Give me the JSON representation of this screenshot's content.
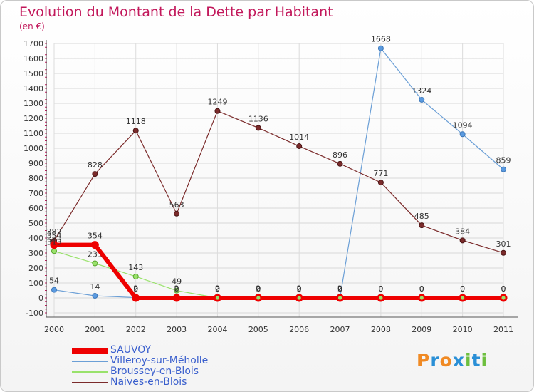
{
  "title": "Evolution du Montant de la Dette par Habitant",
  "unit": "(en €)",
  "logo": {
    "text": "Proxiti",
    "letters": [
      {
        "ch": "P",
        "color": "#f08a24"
      },
      {
        "ch": "r",
        "color": "#2a8fd6"
      },
      {
        "ch": "o",
        "color": "#f08a24"
      },
      {
        "ch": "x",
        "color": "#2a8fd6"
      },
      {
        "ch": "i",
        "color": "#6dbf3e"
      },
      {
        "ch": "t",
        "color": "#2a8fd6"
      },
      {
        "ch": "i",
        "color": "#6dbf3e"
      }
    ]
  },
  "chart_data": {
    "type": "line",
    "title": "Evolution du Montant de la Dette par Habitant",
    "ylabel": "(en €)",
    "x": [
      "2000",
      "2001",
      "2002",
      "2003",
      "2004",
      "2005",
      "2006",
      "2007",
      "2008",
      "2009",
      "2010",
      "2011"
    ],
    "ylim": [
      -100,
      1700
    ],
    "yticks": [
      -100,
      0,
      100,
      200,
      300,
      400,
      500,
      600,
      700,
      800,
      900,
      1000,
      1100,
      1200,
      1300,
      1400,
      1500,
      1600,
      1700
    ],
    "grid": true,
    "legend_position": "bottom-left",
    "series": [
      {
        "name": "SAUVOY",
        "color": "#ee0000",
        "values": [
          354,
          354,
          0,
          0,
          0,
          0,
          0,
          0,
          0,
          0,
          0,
          0
        ],
        "labels": [
          "354",
          "354",
          "0",
          "0",
          "0",
          "0",
          "0",
          "0",
          "0",
          "0",
          "0",
          "0"
        ]
      },
      {
        "name": "Villeroy-sur-Méholle",
        "color": "#6b9fd6",
        "values": [
          54,
          14,
          2,
          2,
          2,
          2,
          2,
          2,
          1668,
          1324,
          1094,
          859
        ],
        "labels": [
          "54",
          "14",
          "2",
          "2",
          "2",
          "2",
          "2",
          "2",
          "1668",
          "1324",
          "1094",
          "859"
        ]
      },
      {
        "name": "Broussey-en-Blois",
        "color": "#99e26b",
        "values": [
          313,
          231,
          143,
          49,
          0,
          0,
          0,
          0,
          0,
          0,
          0,
          0
        ],
        "labels": [
          "313",
          "231",
          "143",
          "49",
          "0",
          "0",
          "0",
          "0",
          "0",
          "0",
          "0",
          "0"
        ]
      },
      {
        "name": "Naives-en-Blois",
        "color": "#7b2b2b",
        "values": [
          382,
          828,
          1118,
          563,
          1249,
          1136,
          1014,
          896,
          771,
          485,
          384,
          301
        ],
        "labels": [
          "382",
          "828",
          "1118",
          "563",
          "1249",
          "1136",
          "1014",
          "896",
          "771",
          "485",
          "384",
          "301"
        ]
      }
    ]
  }
}
